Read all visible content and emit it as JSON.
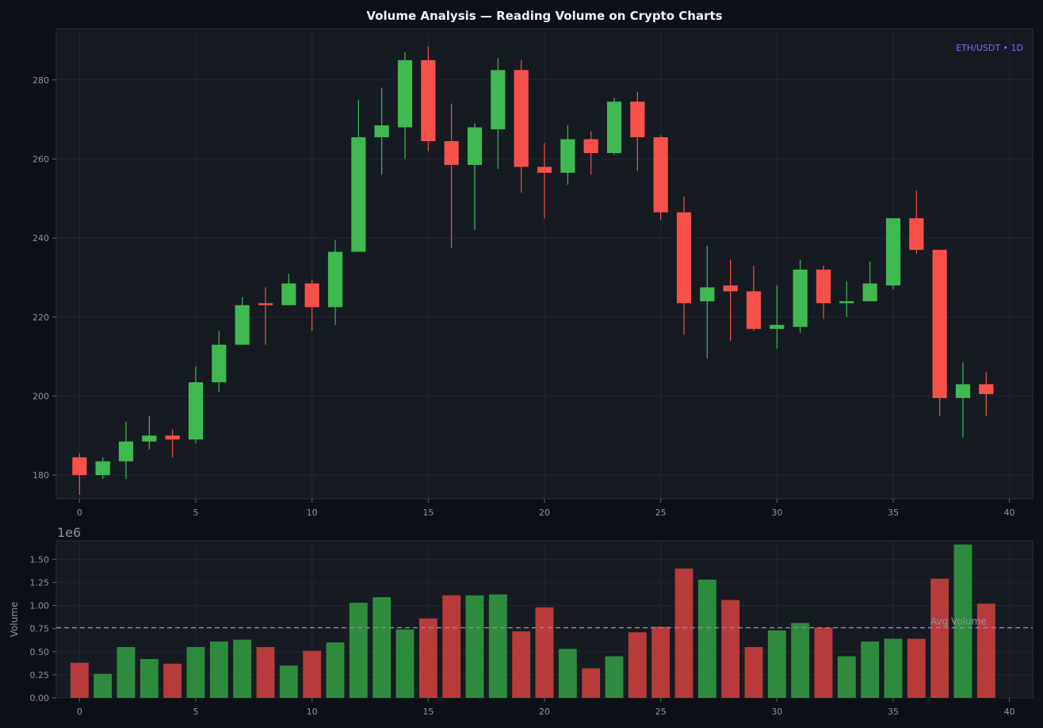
{
  "chart_data": [
    {
      "type": "candlestick",
      "title": "Volume Analysis — Reading Volume on Crypto Charts",
      "pair_label": "ETH/USDT • 1D",
      "xlabel": "",
      "ylabel": "",
      "xlim": [
        -1,
        41
      ],
      "ylim": [
        174,
        293
      ],
      "xticks": [
        0,
        5,
        10,
        15,
        20,
        25,
        30,
        35,
        40
      ],
      "yticks": [
        180,
        200,
        220,
        240,
        260,
        280
      ],
      "grid": true,
      "up_color": "#3fb950",
      "down_color": "#f85149",
      "candles": [
        {
          "x": 0,
          "open": 184.5,
          "high": 185.5,
          "low": 175.0,
          "close": 180.0
        },
        {
          "x": 1,
          "open": 180.0,
          "high": 184.5,
          "low": 179.0,
          "close": 183.5
        },
        {
          "x": 2,
          "open": 183.5,
          "high": 193.5,
          "low": 179.0,
          "close": 188.5
        },
        {
          "x": 3,
          "open": 188.5,
          "high": 195.0,
          "low": 186.5,
          "close": 190.0
        },
        {
          "x": 4,
          "open": 190.0,
          "high": 191.5,
          "low": 184.5,
          "close": 189.0
        },
        {
          "x": 5,
          "open": 189.0,
          "high": 207.5,
          "low": 188.0,
          "close": 203.5
        },
        {
          "x": 6,
          "open": 203.5,
          "high": 216.5,
          "low": 201.0,
          "close": 213.0
        },
        {
          "x": 7,
          "open": 213.0,
          "high": 225.0,
          "low": 213.0,
          "close": 223.0
        },
        {
          "x": 8,
          "open": 223.5,
          "high": 227.5,
          "low": 213.0,
          "close": 223.0
        },
        {
          "x": 9,
          "open": 223.0,
          "high": 231.0,
          "low": 223.0,
          "close": 228.5
        },
        {
          "x": 10,
          "open": 228.5,
          "high": 229.5,
          "low": 216.5,
          "close": 222.5
        },
        {
          "x": 11,
          "open": 222.5,
          "high": 239.5,
          "low": 218.0,
          "close": 236.5
        },
        {
          "x": 12,
          "open": 236.5,
          "high": 275.0,
          "low": 236.5,
          "close": 265.5
        },
        {
          "x": 13,
          "open": 265.5,
          "high": 278.0,
          "low": 256.0,
          "close": 268.5
        },
        {
          "x": 14,
          "open": 268.0,
          "high": 287.0,
          "low": 260.0,
          "close": 285.0
        },
        {
          "x": 15,
          "open": 285.0,
          "high": 288.5,
          "low": 262.0,
          "close": 264.5
        },
        {
          "x": 16,
          "open": 264.5,
          "high": 274.0,
          "low": 237.5,
          "close": 258.5
        },
        {
          "x": 17,
          "open": 258.5,
          "high": 269.0,
          "low": 242.0,
          "close": 268.0
        },
        {
          "x": 18,
          "open": 267.5,
          "high": 285.5,
          "low": 257.5,
          "close": 282.5
        },
        {
          "x": 19,
          "open": 282.5,
          "high": 285.0,
          "low": 251.5,
          "close": 258.0
        },
        {
          "x": 20,
          "open": 258.0,
          "high": 264.0,
          "low": 245.0,
          "close": 256.5
        },
        {
          "x": 21,
          "open": 256.5,
          "high": 268.5,
          "low": 253.5,
          "close": 265.0
        },
        {
          "x": 22,
          "open": 265.0,
          "high": 267.0,
          "low": 256.0,
          "close": 261.5
        },
        {
          "x": 23,
          "open": 261.5,
          "high": 275.5,
          "low": 261.0,
          "close": 274.5
        },
        {
          "x": 24,
          "open": 274.5,
          "high": 277.0,
          "low": 257.0,
          "close": 265.5
        },
        {
          "x": 25,
          "open": 265.5,
          "high": 266.0,
          "low": 244.5,
          "close": 246.5
        },
        {
          "x": 26,
          "open": 246.5,
          "high": 250.5,
          "low": 215.5,
          "close": 223.5
        },
        {
          "x": 27,
          "open": 224.0,
          "high": 238.0,
          "low": 209.5,
          "close": 227.5
        },
        {
          "x": 28,
          "open": 228.0,
          "high": 234.5,
          "low": 214.0,
          "close": 226.5
        },
        {
          "x": 29,
          "open": 226.5,
          "high": 233.0,
          "low": 216.5,
          "close": 217.0
        },
        {
          "x": 30,
          "open": 217.0,
          "high": 228.0,
          "low": 212.0,
          "close": 218.0
        },
        {
          "x": 31,
          "open": 217.5,
          "high": 234.5,
          "low": 216.0,
          "close": 232.0
        },
        {
          "x": 32,
          "open": 232.0,
          "high": 233.0,
          "low": 219.5,
          "close": 223.5
        },
        {
          "x": 33,
          "open": 223.5,
          "high": 229.0,
          "low": 220.0,
          "close": 224.0
        },
        {
          "x": 34,
          "open": 224.0,
          "high": 234.0,
          "low": 224.0,
          "close": 228.5
        },
        {
          "x": 35,
          "open": 228.0,
          "high": 245.0,
          "low": 227.0,
          "close": 245.0
        },
        {
          "x": 36,
          "open": 245.0,
          "high": 252.0,
          "low": 236.0,
          "close": 237.0
        },
        {
          "x": 37,
          "open": 237.0,
          "high": 237.0,
          "low": 195.0,
          "close": 199.5
        },
        {
          "x": 38,
          "open": 199.5,
          "high": 208.5,
          "low": 189.5,
          "close": 203.0
        },
        {
          "x": 39,
          "open": 203.0,
          "high": 206.0,
          "low": 195.0,
          "close": 200.5
        }
      ]
    },
    {
      "type": "bar",
      "ylabel": "Volume",
      "offset_text": "1e6",
      "xlim": [
        -1,
        41
      ],
      "ylim": [
        0,
        1.7
      ],
      "xticks": [
        0,
        5,
        10,
        15,
        20,
        25,
        30,
        35,
        40
      ],
      "yticks": [
        "0.00",
        "0.25",
        "0.50",
        "0.75",
        "1.00",
        "1.25",
        "1.50"
      ],
      "grid": true,
      "avg_volume": 0.76,
      "avg_label": "Avg Volume",
      "up_color": "#2e8b3e",
      "down_color": "#b83b3b",
      "bars": [
        {
          "x": 0,
          "value": 0.38,
          "dir": "down"
        },
        {
          "x": 1,
          "value": 0.26,
          "dir": "up"
        },
        {
          "x": 2,
          "value": 0.55,
          "dir": "up"
        },
        {
          "x": 3,
          "value": 0.42,
          "dir": "up"
        },
        {
          "x": 4,
          "value": 0.37,
          "dir": "down"
        },
        {
          "x": 5,
          "value": 0.55,
          "dir": "up"
        },
        {
          "x": 6,
          "value": 0.61,
          "dir": "up"
        },
        {
          "x": 7,
          "value": 0.63,
          "dir": "up"
        },
        {
          "x": 8,
          "value": 0.55,
          "dir": "down"
        },
        {
          "x": 9,
          "value": 0.35,
          "dir": "up"
        },
        {
          "x": 10,
          "value": 0.51,
          "dir": "down"
        },
        {
          "x": 11,
          "value": 0.6,
          "dir": "up"
        },
        {
          "x": 12,
          "value": 1.03,
          "dir": "up"
        },
        {
          "x": 13,
          "value": 1.09,
          "dir": "up"
        },
        {
          "x": 14,
          "value": 0.74,
          "dir": "up"
        },
        {
          "x": 15,
          "value": 0.86,
          "dir": "down"
        },
        {
          "x": 16,
          "value": 1.11,
          "dir": "down"
        },
        {
          "x": 17,
          "value": 1.11,
          "dir": "up"
        },
        {
          "x": 18,
          "value": 1.12,
          "dir": "up"
        },
        {
          "x": 19,
          "value": 0.72,
          "dir": "down"
        },
        {
          "x": 20,
          "value": 0.98,
          "dir": "down"
        },
        {
          "x": 21,
          "value": 0.53,
          "dir": "up"
        },
        {
          "x": 22,
          "value": 0.32,
          "dir": "down"
        },
        {
          "x": 23,
          "value": 0.45,
          "dir": "up"
        },
        {
          "x": 24,
          "value": 0.71,
          "dir": "down"
        },
        {
          "x": 25,
          "value": 0.77,
          "dir": "down"
        },
        {
          "x": 26,
          "value": 1.4,
          "dir": "down"
        },
        {
          "x": 27,
          "value": 1.28,
          "dir": "up"
        },
        {
          "x": 28,
          "value": 1.06,
          "dir": "down"
        },
        {
          "x": 29,
          "value": 0.55,
          "dir": "down"
        },
        {
          "x": 30,
          "value": 0.73,
          "dir": "up"
        },
        {
          "x": 31,
          "value": 0.81,
          "dir": "up"
        },
        {
          "x": 32,
          "value": 0.76,
          "dir": "down"
        },
        {
          "x": 33,
          "value": 0.45,
          "dir": "up"
        },
        {
          "x": 34,
          "value": 0.61,
          "dir": "up"
        },
        {
          "x": 35,
          "value": 0.64,
          "dir": "up"
        },
        {
          "x": 36,
          "value": 0.64,
          "dir": "down"
        },
        {
          "x": 37,
          "value": 1.29,
          "dir": "down"
        },
        {
          "x": 38,
          "value": 1.66,
          "dir": "up"
        },
        {
          "x": 39,
          "value": 1.02,
          "dir": "down"
        }
      ]
    }
  ]
}
